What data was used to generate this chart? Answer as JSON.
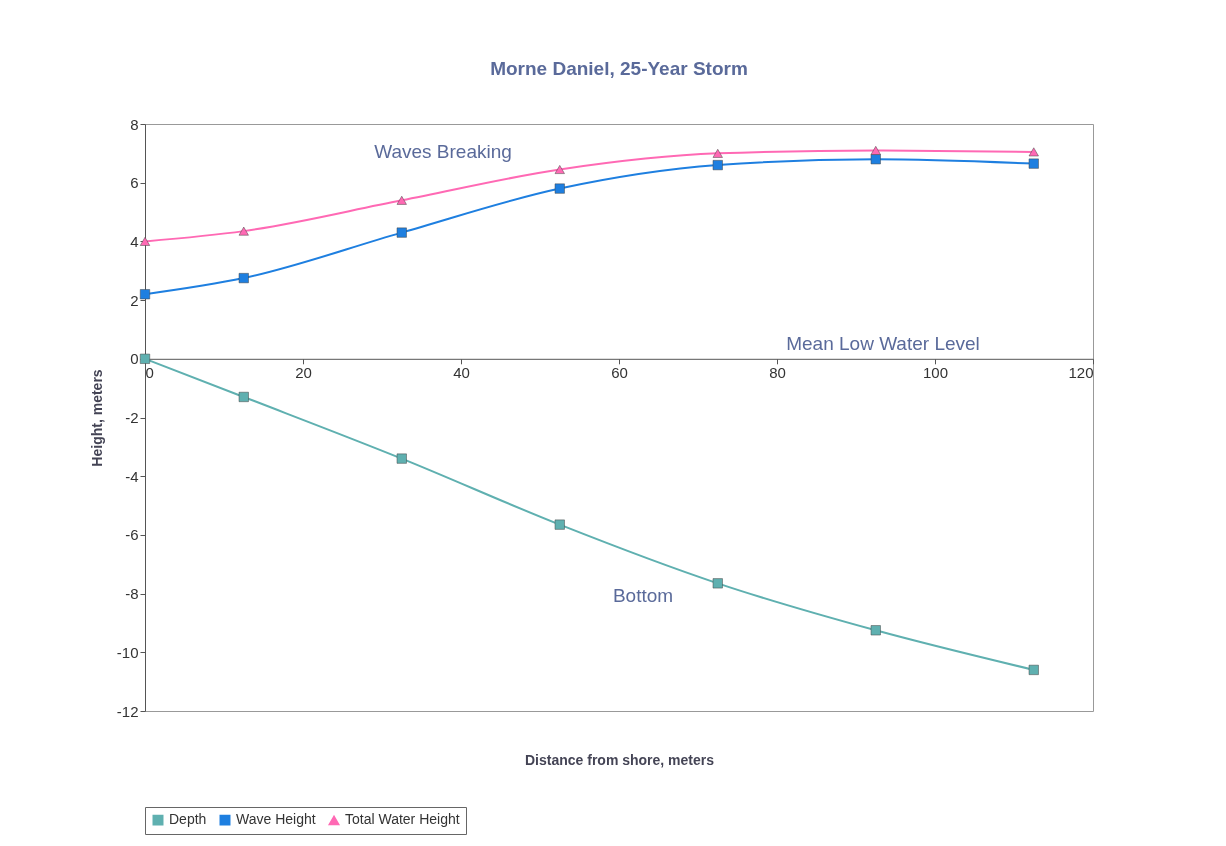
{
  "chart_data": {
    "type": "line",
    "title": "Morne Daniel, 25-Year Storm",
    "xlabel": "Distance from shore, meters",
    "ylabel": "Height, meters",
    "x": [
      0,
      12.5,
      32.5,
      52.5,
      72.5,
      92.5,
      112.5
    ],
    "series": [
      {
        "name": "Depth",
        "color": "#5fb0b0",
        "marker": "square",
        "values": [
          0,
          -1.3,
          -3.4,
          -5.65,
          -7.65,
          -9.25,
          -10.6
        ]
      },
      {
        "name": "Wave Height",
        "color": "#1e7fe0",
        "marker": "square",
        "values": [
          2.2,
          2.75,
          4.3,
          5.8,
          6.6,
          6.8,
          6.65
        ]
      },
      {
        "name": "Total Water Height",
        "color": "#ff69b4",
        "marker": "triangle",
        "values": [
          4.0,
          4.35,
          5.4,
          6.45,
          7.0,
          7.1,
          7.05
        ]
      }
    ],
    "xlim": [
      0,
      120
    ],
    "xticks": [
      0,
      20,
      40,
      60,
      80,
      100,
      120
    ],
    "ylim": [
      -12,
      8
    ],
    "yticks": [
      -12,
      -10,
      -8,
      -6,
      -4,
      -2,
      0,
      2,
      4,
      6,
      8
    ],
    "annotations": [
      "Waves Breaking",
      "Mean Low Water Level",
      "Bottom"
    ],
    "grid": false,
    "legend": "bottom"
  }
}
